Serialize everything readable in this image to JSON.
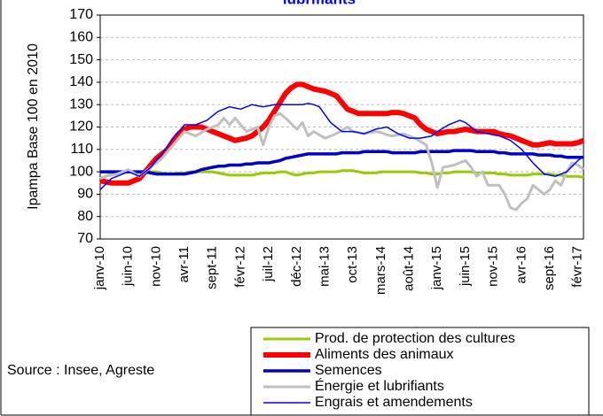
{
  "chart_data": {
    "type": "line",
    "title": "lubrifiants",
    "y_label": "Ipampa Base 100 en 2010",
    "annotation": "Source : Insee, Agreste",
    "categories": [
      "janv-10",
      null,
      null,
      null,
      null,
      "juin-10",
      null,
      null,
      null,
      null,
      "nov-10",
      null,
      null,
      null,
      null,
      "avr-11",
      null,
      null,
      null,
      null,
      "sept-11",
      null,
      null,
      null,
      null,
      "févr-12",
      null,
      null,
      null,
      null,
      "juil-12",
      null,
      null,
      null,
      null,
      "déc-12",
      null,
      null,
      null,
      null,
      "mai-13",
      null,
      null,
      null,
      null,
      "oct-13",
      null,
      null,
      null,
      null,
      "mars-14",
      null,
      null,
      null,
      null,
      "août-14",
      null,
      null,
      null,
      null,
      "janv-15",
      null,
      null,
      null,
      null,
      "juin-15",
      null,
      null,
      null,
      null,
      "nov-15",
      null,
      null,
      null,
      null,
      "avr-16",
      null,
      null,
      null,
      null,
      "sept-16",
      null,
      null,
      null,
      null,
      "févr-17",
      null
    ],
    "ylim": [
      70,
      170
    ],
    "yticks": [
      70,
      80,
      90,
      100,
      110,
      120,
      130,
      140,
      150,
      160,
      170
    ],
    "grid": true,
    "series": [
      {
        "name": "Prod. de protection des cultures",
        "color": "#99cc00",
        "values": [
          97,
          98,
          99,
          99.5,
          100,
          100,
          100,
          100,
          100,
          100,
          100,
          99.5,
          99,
          99,
          99.5,
          99.5,
          100,
          100,
          100,
          100,
          100,
          99.5,
          99,
          98.5,
          98.5,
          98.5,
          98.5,
          98.5,
          99,
          99.5,
          99.5,
          99.5,
          100,
          100,
          99,
          98.5,
          99,
          99.5,
          99.5,
          100,
          100,
          100,
          100,
          100.5,
          100.5,
          100.5,
          100,
          99.5,
          99.5,
          99.5,
          100,
          100,
          100,
          100,
          100,
          100,
          100,
          99.5,
          99.5,
          99,
          99,
          99.5,
          99.5,
          100,
          100,
          100,
          100,
          99.5,
          99.5,
          99.5,
          99.5,
          99,
          99,
          98.5,
          98.5,
          98.5,
          98.5,
          99,
          99,
          99,
          99,
          98.5,
          98.5,
          98,
          98,
          98,
          97.5
        ]
      },
      {
        "name": "Aliments des animaux",
        "color": "#ff0000",
        "values": [
          96,
          95.5,
          95,
          95,
          95,
          95,
          96,
          97,
          100,
          103,
          106,
          108,
          110,
          114,
          117,
          119,
          120,
          120,
          120,
          119,
          118,
          117,
          116,
          115,
          114,
          114.5,
          115,
          116,
          118,
          120,
          123,
          127,
          131,
          135,
          137.5,
          139,
          139,
          138,
          137,
          136.5,
          136,
          135,
          134,
          131,
          128,
          127,
          126,
          126,
          126,
          126,
          126,
          126,
          126.5,
          126.5,
          126,
          125,
          124,
          121,
          119,
          118,
          117,
          117.5,
          118,
          118,
          118.5,
          119,
          118.5,
          118,
          118,
          118,
          118,
          117,
          116.5,
          116,
          115,
          114,
          113,
          112,
          112,
          112.5,
          113,
          112.5,
          112.5,
          112.5,
          112.5,
          113,
          114
        ]
      },
      {
        "name": "Semences",
        "color": "#0000cc",
        "values": [
          100,
          100,
          100,
          100,
          100,
          100,
          100,
          100,
          100,
          99.5,
          99,
          99,
          99,
          99,
          99,
          99,
          99.5,
          100,
          101,
          101.5,
          102,
          102.5,
          102.5,
          103,
          103,
          103,
          103.5,
          103.5,
          104,
          104,
          104,
          104.5,
          105,
          106,
          106.5,
          107,
          107.5,
          108,
          108,
          108,
          108,
          108,
          108,
          108.5,
          108.5,
          108.5,
          108.5,
          109,
          109,
          109,
          109,
          109,
          108.5,
          108.5,
          108.5,
          108.5,
          108.5,
          109,
          109,
          109,
          109,
          109,
          109,
          109.5,
          109.5,
          109.5,
          109.5,
          109,
          109,
          109,
          109,
          108.5,
          108.5,
          108,
          108,
          108,
          108,
          108,
          107.5,
          107.5,
          107.5,
          107,
          107,
          106.5,
          106.5,
          106.5,
          106.5
        ]
      },
      {
        "name": "Énergie et lubrifiants",
        "color": "#c0c0c0",
        "values": [
          97,
          98,
          98.5,
          99,
          100,
          101,
          99.5,
          98,
          100,
          102,
          104,
          106,
          109,
          112,
          115,
          118,
          117,
          116,
          117.5,
          119,
          120,
          121,
          124,
          121,
          124,
          121,
          118,
          119,
          120,
          112,
          120,
          125,
          126,
          124,
          121.5,
          119,
          122,
          116,
          118,
          116.5,
          115,
          116,
          117,
          118.5,
          120,
          118,
          117.5,
          117,
          117.5,
          118,
          117.5,
          116.5,
          116,
          116.5,
          117,
          116,
          115,
          113.5,
          112,
          104,
          93,
          102,
          102.5,
          103,
          104,
          105,
          102,
          98,
          100,
          94,
          94,
          94,
          90,
          84,
          83,
          86,
          88,
          94,
          92,
          90,
          92,
          96,
          94,
          100,
          104,
          103,
          101
        ]
      },
      {
        "name": "Engrais et amendements",
        "color": "#0000ff",
        "values": [
          92,
          94.5,
          97,
          98,
          99,
          100,
          99,
          98,
          100,
          102,
          105,
          108,
          111.5,
          115,
          118,
          121,
          121,
          121,
          122,
          123,
          125,
          127,
          128,
          129,
          128.5,
          128,
          129,
          130,
          129.5,
          129,
          129.5,
          130,
          130,
          130,
          130,
          130,
          130,
          130.5,
          130,
          129,
          125.5,
          122,
          120,
          118,
          118,
          118,
          117.5,
          117,
          118,
          119,
          119.5,
          120,
          118.5,
          117,
          116,
          115,
          115,
          115,
          115.5,
          116,
          118,
          119.5,
          121,
          122,
          123,
          122,
          120,
          118,
          117.5,
          117,
          116.5,
          116,
          115,
          114,
          112,
          110,
          107,
          104,
          101.5,
          99,
          98.5,
          98,
          99,
          100,
          102.5,
          105,
          107
        ]
      }
    ]
  }
}
